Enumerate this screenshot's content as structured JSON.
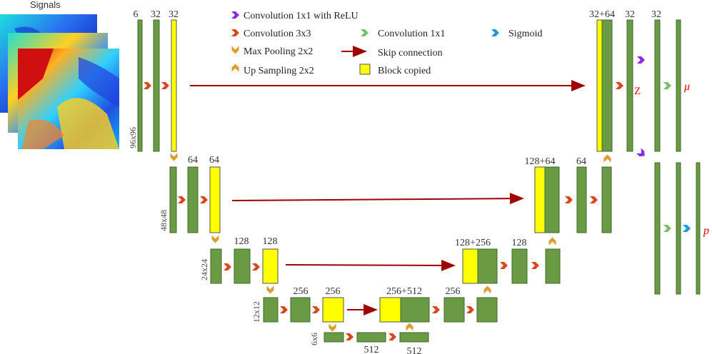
{
  "signals": {
    "title": "Signals"
  },
  "legend": {
    "conv1x1_relu": "Convolution 1x1 with ReLU",
    "conv3x3": "Convolution 3x3",
    "conv1x1": "Convolution 1x1",
    "sigmoid": "Sigmoid",
    "maxpool": "Max Pooling 2x2",
    "skip": "Skip connection",
    "upsample": "Up Sampling 2x2",
    "copied": "Block copied"
  },
  "level1": {
    "res": "96x96",
    "c1": "6",
    "c2": "32",
    "c3": "32"
  },
  "level2": {
    "res": "48x48",
    "c1": "64",
    "c2": "64"
  },
  "level3": {
    "res": "24x24",
    "c1": "128",
    "c2": "128"
  },
  "level4": {
    "res": "12x12",
    "c1": "256",
    "c2": "256"
  },
  "level5": {
    "res": "6x6",
    "c1": "512",
    "c2": "512"
  },
  "decoder": {
    "d4_concat": "256+512",
    "d4_out": "256",
    "d3_concat": "128+256",
    "d3_out": "128",
    "d2_concat": "128+64",
    "d2_out": "64",
    "d1_concat": "32+64",
    "d1_out": "32",
    "d1_out2": "32"
  },
  "outputs": {
    "z": "Z",
    "mu": "μ",
    "p": "p"
  },
  "colors": {
    "block": "#6a9a44",
    "copied": "#ffff00",
    "conv3x3": "#d9481c",
    "conv1x1": "#7fbf6a",
    "conv1x1_relu": "#8a2be2",
    "pool": "#d9a030",
    "sigmoid": "#1a9ad6",
    "skip": "#a00000"
  }
}
